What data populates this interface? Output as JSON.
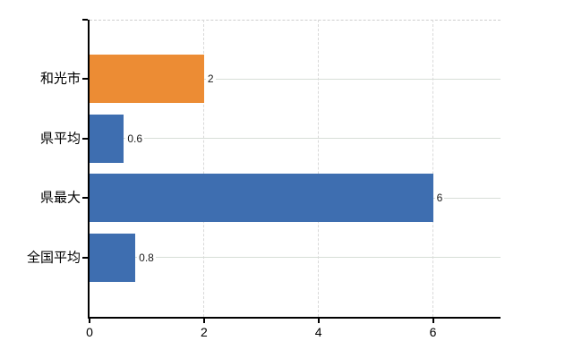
{
  "chart_data": {
    "type": "bar",
    "orientation": "horizontal",
    "title": "",
    "categories": [
      "和光市",
      "県平均",
      "県最大",
      "全国平均"
    ],
    "values": [
      2,
      0.6,
      6,
      0.8
    ],
    "value_labels": [
      "2",
      "0.6",
      "6",
      "0.8"
    ],
    "bar_colors": [
      "#EC8C34",
      "#3E6EB0",
      "#3E6EB0",
      "#3E6EB0"
    ],
    "x_tick_labels": [
      "0",
      "2",
      "4",
      "6"
    ],
    "x_tick_values": [
      0,
      2,
      4,
      6
    ],
    "xlim": [
      0,
      7.18
    ],
    "legend": null,
    "grid": {
      "horizontal_solid": true,
      "vertical_dashed": true,
      "top_border_dashed": true
    },
    "colors": {
      "axis": "#000000",
      "h_gridline": "#d7ded7",
      "v_gridline": "#d9d9d9",
      "top_border": "#cfcfcf",
      "background": "#ffffff",
      "text": "#000000"
    }
  }
}
